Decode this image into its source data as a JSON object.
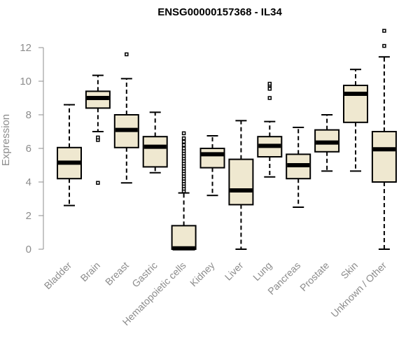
{
  "chart_data": {
    "type": "boxplot",
    "title": "ENSG00000157368 - IL34",
    "xlabel": "",
    "ylabel": "Expression",
    "ylim": [
      0,
      13
    ],
    "yticks": [
      0,
      2,
      4,
      6,
      8,
      10,
      12
    ],
    "grid": false,
    "colors": {
      "box_fill": "#efe8d0",
      "stroke": "#000000",
      "axis_text": "#8c8c8c",
      "title": "#000000"
    },
    "categories": [
      "Bladder",
      "Brain",
      "Breast",
      "Gastric",
      "Hematopoietic cells",
      "Kidney",
      "Liver",
      "Lung",
      "Pancreas",
      "Prostate",
      "Skin",
      "Unknown / Other"
    ],
    "boxes": [
      {
        "name": "Bladder",
        "min": 2.6,
        "q1": 4.2,
        "median": 5.15,
        "q3": 6.05,
        "max": 8.6,
        "outliers": []
      },
      {
        "name": "Brain",
        "min": 7.0,
        "q1": 8.4,
        "median": 9.0,
        "q3": 9.4,
        "max": 10.35,
        "outliers": [
          6.5,
          6.65,
          3.95
        ]
      },
      {
        "name": "Breast",
        "min": 3.95,
        "q1": 6.05,
        "median": 7.1,
        "q3": 8.0,
        "max": 10.15,
        "outliers": [
          11.6
        ]
      },
      {
        "name": "Gastric",
        "min": 4.55,
        "q1": 4.9,
        "median": 6.1,
        "q3": 6.7,
        "max": 8.15,
        "outliers": []
      },
      {
        "name": "Hematopoietic cells",
        "min": 0.0,
        "q1": 0.0,
        "median": 0.05,
        "q3": 1.4,
        "max": 3.35,
        "outliers": [
          3.45,
          3.6,
          3.75,
          3.9,
          4.05,
          4.2,
          4.35,
          4.5,
          4.65,
          4.8,
          4.95,
          5.1,
          5.25,
          5.4,
          5.55,
          5.7,
          5.85,
          6.0,
          6.2,
          6.4,
          6.6,
          6.9
        ]
      },
      {
        "name": "Kidney",
        "min": 3.2,
        "q1": 4.85,
        "median": 5.65,
        "q3": 6.0,
        "max": 6.75,
        "outliers": []
      },
      {
        "name": "Liver",
        "min": 0.0,
        "q1": 2.65,
        "median": 3.5,
        "q3": 5.35,
        "max": 7.65,
        "outliers": []
      },
      {
        "name": "Lung",
        "min": 4.3,
        "q1": 5.5,
        "median": 6.15,
        "q3": 6.7,
        "max": 7.6,
        "outliers": [
          9.0,
          9.55,
          9.75,
          9.85
        ]
      },
      {
        "name": "Pancreas",
        "min": 2.5,
        "q1": 4.2,
        "median": 5.0,
        "q3": 5.65,
        "max": 7.25,
        "outliers": []
      },
      {
        "name": "Prostate",
        "min": 4.65,
        "q1": 5.8,
        "median": 6.35,
        "q3": 7.1,
        "max": 8.0,
        "outliers": []
      },
      {
        "name": "Skin",
        "min": 4.65,
        "q1": 7.55,
        "median": 9.25,
        "q3": 9.75,
        "max": 10.7,
        "outliers": []
      },
      {
        "name": "Unknown / Other",
        "min": 0.0,
        "q1": 4.0,
        "median": 5.95,
        "q3": 7.0,
        "max": 11.45,
        "outliers": [
          12.1,
          13.0
        ]
      }
    ]
  }
}
